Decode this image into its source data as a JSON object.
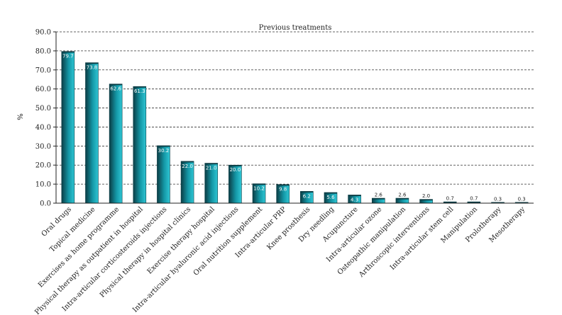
{
  "chart_data": {
    "type": "bar",
    "title": "Previous treatments",
    "xlabel": "",
    "ylabel": "%",
    "ylim": [
      0,
      90
    ],
    "yticks": [
      "0.0",
      "10.0",
      "20.0",
      "30.0",
      "40.0",
      "50.0",
      "60.0",
      "70.0",
      "80.0",
      "90.0"
    ],
    "grid": true,
    "categories": [
      "Oral drugs",
      "Topical medicine",
      "Exercises as home programme",
      "Physical therapy as outpatient in hospital",
      "Intra-articular corticosteroids injections",
      "Physical therapy in hospital clinics",
      "Exercise therapy hospital",
      "Intra-articular hyaluronic acid injections",
      "Oral nutrition supplement",
      "Intra-articular PRP",
      "Knee prosthesis",
      "Dry needling",
      "Acupuncture",
      "Intra-articular ozone",
      "Osteopathic manipulation",
      "Arthroscopic interventions",
      "Intra-articular stem cell",
      "Manipulation",
      "Prolotherapy",
      "Mesotherapy"
    ],
    "values": [
      79.7,
      73.8,
      62.6,
      61.3,
      30.2,
      22.0,
      21.0,
      20.0,
      10.2,
      9.8,
      6.2,
      5.6,
      4.3,
      2.6,
      2.6,
      2.0,
      0.7,
      0.7,
      0.3,
      0.3
    ],
    "value_labels": [
      "79.7",
      "73.8",
      "62.6",
      "61.3",
      "30.2",
      "22.0",
      "21.0",
      "20.0",
      "10.2",
      "9.8",
      "6.2",
      "5.6",
      "4.3",
      "2.6",
      "2.6",
      "2.0",
      "0.7",
      "0.7",
      "0.3",
      "0.3"
    ],
    "colors": {
      "bar_dark": "#0b3d45",
      "bar_mid": "#1497a6",
      "bar_light": "#2fc6d4",
      "label_inside": "#ffffff",
      "label_outside": "#222222"
    }
  }
}
